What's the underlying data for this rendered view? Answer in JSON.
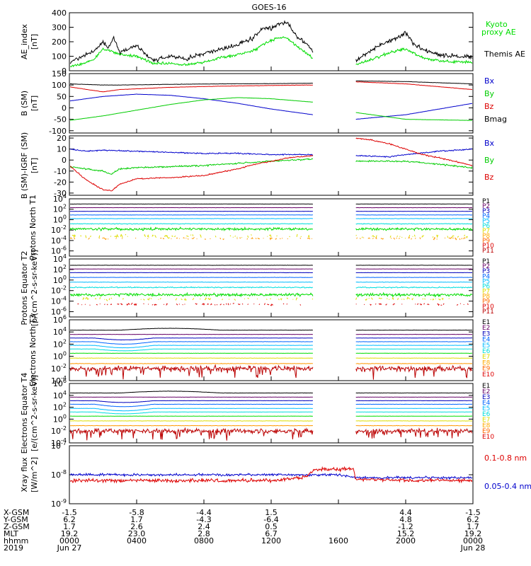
{
  "title": "GOES-16",
  "x_axis": {
    "year": "2019",
    "row_labels": [
      "X-GSM",
      "Y-GSM",
      "Z-GSM",
      "MLT",
      "hhmm"
    ],
    "ticks": [
      {
        "t": 0,
        "values": [
          "-1.5",
          "6.2",
          "1.7",
          "19.2",
          "0000"
        ],
        "date": "Jun 27"
      },
      {
        "t": 4,
        "values": [
          "-5.8",
          "1.7",
          "2.6",
          "23.0",
          "0400"
        ],
        "date": ""
      },
      {
        "t": 8,
        "values": [
          "-4.4",
          "-4.3",
          "2.4",
          "2.8",
          "0800"
        ],
        "date": ""
      },
      {
        "t": 12,
        "values": [
          "1.5",
          "-6.4",
          "0.5",
          "6.7",
          "1200"
        ],
        "date": ""
      },
      {
        "t": 16,
        "values": [
          "",
          "",
          "",
          "",
          "1600"
        ],
        "date": ""
      },
      {
        "t": 20,
        "values": [
          "4.4",
          "4.8",
          "-1.2",
          "15.2",
          "2000"
        ],
        "date": ""
      },
      {
        "t": 24,
        "values": [
          "-1.5",
          "6.2",
          "1.7",
          "19.2",
          "0000"
        ],
        "date": "Jun 28"
      }
    ],
    "range_hours": [
      0,
      24
    ]
  },
  "data_gap_hours": [
    14.5,
    17.0
  ],
  "chart_data": [
    {
      "type": "line",
      "ylabel": "AE_index [nT]",
      "ylim": [
        0,
        400
      ],
      "yticks": [
        "0",
        "100",
        "200",
        "300",
        "400"
      ],
      "legend": [
        {
          "label": "Kyoto proxy AE",
          "color": "#00dd00"
        },
        {
          "label": "Themis AE",
          "color": "#000000"
        }
      ],
      "series": [
        {
          "name": "Themis AE",
          "color": "#000000",
          "noise": 22,
          "x": [
            0,
            1,
            1.5,
            2,
            2.3,
            2.6,
            3,
            4,
            5,
            6,
            7,
            8,
            9,
            10,
            11,
            11.5,
            12,
            12.5,
            13,
            13.5,
            14,
            14.5,
            15,
            16,
            17,
            18,
            18.5,
            19,
            19.5,
            20,
            20.5,
            21,
            22,
            23,
            24
          ],
          "y": [
            60,
            110,
            140,
            200,
            150,
            230,
            130,
            170,
            70,
            100,
            80,
            120,
            150,
            180,
            230,
            300,
            290,
            320,
            330,
            240,
            200,
            130,
            60,
            40,
            70,
            140,
            180,
            200,
            230,
            260,
            180,
            150,
            110,
            100,
            90
          ]
        },
        {
          "name": "Kyoto proxy AE",
          "color": "#00dd00",
          "noise": 14,
          "x": [
            0,
            1,
            1.5,
            2,
            2.5,
            3,
            4,
            5,
            6,
            7,
            8,
            9,
            10,
            11,
            11.5,
            12,
            12.5,
            13,
            13.5,
            14,
            15,
            16,
            17,
            18,
            19,
            19.5,
            20,
            20.5,
            21,
            22,
            23,
            24
          ],
          "y": [
            30,
            55,
            80,
            150,
            140,
            110,
            100,
            50,
            50,
            40,
            60,
            90,
            110,
            140,
            180,
            210,
            230,
            220,
            170,
            130,
            40,
            30,
            40,
            80,
            120,
            140,
            150,
            120,
            90,
            70,
            60,
            60
          ]
        }
      ]
    },
    {
      "type": "line",
      "ylabel": "B (SM) [nT]",
      "ylim": [
        -110,
        150
      ],
      "yticks": [
        "-100",
        "-50",
        "0",
        "50",
        "100",
        "150"
      ],
      "legend": [
        {
          "label": "Bx",
          "color": "#0000cc"
        },
        {
          "label": "By",
          "color": "#00cc00"
        },
        {
          "label": "Bz",
          "color": "#dd0000"
        },
        {
          "label": "Bmag",
          "color": "#000000"
        }
      ],
      "series": [
        {
          "name": "Bmag",
          "color": "#000000",
          "noise": 1,
          "x": [
            0,
            2,
            3,
            6,
            9,
            12,
            14.5,
            17,
            20,
            24
          ],
          "y": [
            105,
            100,
            100,
            103,
            105,
            106,
            108,
            118,
            115,
            105
          ]
        },
        {
          "name": "Bz",
          "color": "#dd0000",
          "noise": 1,
          "x": [
            0,
            2,
            3,
            6,
            9,
            12,
            14.5,
            17,
            20,
            24
          ],
          "y": [
            92,
            70,
            80,
            90,
            95,
            98,
            100,
            114,
            105,
            80
          ]
        },
        {
          "name": "Bx",
          "color": "#0000cc",
          "noise": 0.6,
          "x": [
            0,
            2,
            4,
            6,
            8,
            10,
            12,
            14.5,
            17,
            20,
            24
          ],
          "y": [
            30,
            50,
            60,
            55,
            40,
            20,
            -5,
            -30,
            -50,
            -30,
            20
          ]
        },
        {
          "name": "By",
          "color": "#00cc00",
          "noise": 0.6,
          "x": [
            0,
            2,
            4,
            6,
            8,
            10,
            12,
            14.5,
            17,
            20,
            24
          ],
          "y": [
            -55,
            -35,
            -10,
            15,
            35,
            45,
            40,
            25,
            -20,
            -50,
            -55
          ]
        }
      ]
    },
    {
      "type": "line",
      "ylabel": "B (SM)-IGRF (SM) [nT]",
      "ylim": [
        -32,
        22
      ],
      "yticks": [
        "-30",
        "-20",
        "-10",
        "0",
        "10",
        "20"
      ],
      "legend": [
        {
          "label": "Bx",
          "color": "#0000cc"
        },
        {
          "label": "By",
          "color": "#00cc00"
        },
        {
          "label": "Bz",
          "color": "#dd0000"
        }
      ],
      "series": [
        {
          "name": "Bx",
          "color": "#0000cc",
          "noise": 0.8,
          "x": [
            0,
            1,
            2,
            4,
            6,
            8,
            10,
            12,
            14.5,
            17,
            19,
            20,
            22,
            24
          ],
          "y": [
            10,
            8,
            9,
            8,
            7,
            6,
            6,
            5,
            5,
            4,
            3,
            5,
            8,
            10
          ]
        },
        {
          "name": "By",
          "color": "#00cc00",
          "noise": 1.0,
          "x": [
            0,
            1,
            2,
            2.5,
            3,
            4,
            6,
            8,
            10,
            12,
            14.5,
            17,
            19,
            20,
            22,
            24
          ],
          "y": [
            -6,
            -8,
            -10,
            -13,
            -8,
            -7,
            -6,
            -5,
            -3,
            -1,
            1,
            -1,
            -1,
            -1,
            -4,
            -7
          ]
        },
        {
          "name": "Bz",
          "color": "#dd0000",
          "noise": 0.8,
          "x": [
            0,
            1,
            2,
            2.5,
            3,
            4,
            6,
            8,
            10,
            11,
            12,
            13,
            14.5,
            17,
            18,
            19,
            20,
            21,
            22,
            24
          ],
          "y": [
            -5,
            -18,
            -27,
            -28,
            -22,
            -17,
            -16,
            -14,
            -8,
            -4,
            -1,
            2,
            4,
            20,
            18,
            15,
            10,
            5,
            2,
            -5
          ]
        }
      ]
    },
    {
      "type": "line",
      "ylabel": "Protons North T1",
      "ylog": true,
      "ylim_exp": [
        -7,
        4
      ],
      "yticks": [
        "10^-6",
        "10^-4",
        "10^-2",
        "10^0",
        "10^2",
        "10^4"
      ],
      "legend": [
        "P1",
        "P2",
        "P3",
        "P4",
        "P5",
        "P6",
        "P7",
        "P8",
        "P9",
        "P10",
        "P11"
      ],
      "series": [
        {
          "name": "P1",
          "color": "#000000",
          "log": 3.0,
          "noise": 0.03
        },
        {
          "name": "P2",
          "color": "#660066",
          "log": 2.3,
          "noise": 0.03
        },
        {
          "name": "P3",
          "color": "#0000bb",
          "log": 1.6,
          "noise": 0.03
        },
        {
          "name": "P4",
          "color": "#0066ff",
          "log": 0.9,
          "noise": 0.04
        },
        {
          "name": "P5",
          "color": "#00bbff",
          "log": 0.2,
          "noise": 0.05
        },
        {
          "name": "P6",
          "color": "#00dddd",
          "log": -0.8,
          "noise": 0.1
        },
        {
          "name": "P7",
          "color": "#00dd00",
          "log": -1.8,
          "noise": 0.35
        },
        {
          "name": "P8",
          "color": "#dddd00",
          "log": -3.2,
          "noise": 0.5,
          "sparse": true
        },
        {
          "name": "P9",
          "color": "#ff9900",
          "log": -3.6,
          "noise": 0.3,
          "sparse": true
        }
      ]
    },
    {
      "type": "line",
      "ylabel": "Protons Equator T2 [p/(cm^2-s-sr-keV)]",
      "ylog": true,
      "ylim_exp": [
        -7,
        4
      ],
      "yticks": [
        "10^-6",
        "10^-4",
        "10^-2",
        "10^0",
        "10^2",
        "10^4"
      ],
      "legend": [
        "P1",
        "P2",
        "P3",
        "P4",
        "P5",
        "P6",
        "P7",
        "P8",
        "P9",
        "P10",
        "P11"
      ],
      "series": [
        {
          "name": "P1",
          "color": "#000000",
          "log": 2.8,
          "noise": 0.03
        },
        {
          "name": "P2",
          "color": "#660066",
          "log": 2.1,
          "noise": 0.03
        },
        {
          "name": "P3",
          "color": "#0000bb",
          "log": 1.4,
          "noise": 0.03
        },
        {
          "name": "P4",
          "color": "#0066ff",
          "log": 0.5,
          "noise": 0.04
        },
        {
          "name": "P5",
          "color": "#00bbff",
          "log": -0.4,
          "noise": 0.06
        },
        {
          "name": "P6",
          "color": "#00dddd",
          "log": -1.4,
          "noise": 0.15
        },
        {
          "name": "P7",
          "color": "#00dd00",
          "log": -2.8,
          "noise": 0.4
        },
        {
          "name": "P8",
          "color": "#dddd00",
          "log": -3.6,
          "noise": 0.4,
          "sparse": true
        },
        {
          "name": "P10",
          "color": "#dd0000",
          "log": -4.6,
          "noise": 0.3,
          "sparse": true
        }
      ]
    },
    {
      "type": "line",
      "ylabel": "Electrons North T3",
      "ylog": true,
      "ylim_exp": [
        -4,
        6
      ],
      "yticks": [
        "10^-4",
        "10^-2",
        "10^0",
        "10^2",
        "10^4",
        "10^6"
      ],
      "legend": [
        "E1",
        "E2",
        "E3",
        "E4",
        "E5",
        "E6",
        "E7",
        "E8",
        "E9",
        "E10"
      ],
      "series": [
        {
          "name": "E1",
          "color": "#000000",
          "log": 4.3,
          "noise": 0.03,
          "bump": 0.3
        },
        {
          "name": "E2",
          "color": "#660066",
          "log": 3.6,
          "noise": 0.03
        },
        {
          "name": "E3",
          "color": "#0000bb",
          "log": 3.0,
          "noise": 0.03,
          "dip": 0.3
        },
        {
          "name": "E4",
          "color": "#0066ff",
          "log": 2.4,
          "noise": 0.03,
          "dip": 0.4
        },
        {
          "name": "E5",
          "color": "#00bbff",
          "log": 1.8,
          "noise": 0.03,
          "dip": 0.4
        },
        {
          "name": "E6",
          "color": "#00dddd",
          "log": 1.2,
          "noise": 0.03,
          "dip": 0.3
        },
        {
          "name": "E7",
          "color": "#00dd00",
          "log": 0.5,
          "noise": 0.03
        },
        {
          "name": "E8",
          "color": "#dddd00",
          "log": -0.3,
          "noise": 0.04
        },
        {
          "name": "E9",
          "color": "#ff9900",
          "log": -1.2,
          "noise": 0.05
        },
        {
          "name": "E10",
          "color": "#bb0000",
          "log": -2.0,
          "noise": 0.6,
          "spiky": true
        }
      ]
    },
    {
      "type": "line",
      "ylabel": "Electrons Equator T4 [e/(cm^2-s-sr-keV)]",
      "ylog": true,
      "ylim_exp": [
        -4,
        6
      ],
      "yticks": [
        "10^-4",
        "10^-2",
        "10^0",
        "10^2",
        "10^4",
        "10^6"
      ],
      "legend": [
        "E1",
        "E2",
        "E3",
        "E4",
        "E5",
        "E6",
        "E7",
        "E8",
        "E9",
        "E10"
      ],
      "series": [
        {
          "name": "E1",
          "color": "#000000",
          "log": 4.4,
          "noise": 0.03,
          "bump": 0.3
        },
        {
          "name": "E2",
          "color": "#660066",
          "log": 3.7,
          "noise": 0.03
        },
        {
          "name": "E3",
          "color": "#0000bb",
          "log": 3.1,
          "noise": 0.03,
          "dip": 0.3
        },
        {
          "name": "E4",
          "color": "#0066ff",
          "log": 2.5,
          "noise": 0.03,
          "dip": 0.4
        },
        {
          "name": "E5",
          "color": "#00bbff",
          "log": 1.8,
          "noise": 0.03,
          "dip": 0.4
        },
        {
          "name": "E6",
          "color": "#00dddd",
          "log": 1.2,
          "noise": 0.03,
          "dip": 0.3
        },
        {
          "name": "E7",
          "color": "#00dd00",
          "log": 0.5,
          "noise": 0.03
        },
        {
          "name": "E8",
          "color": "#dddd00",
          "log": -0.3,
          "noise": 0.04
        },
        {
          "name": "E9",
          "color": "#ff9900",
          "log": -1.1,
          "noise": 0.05
        },
        {
          "name": "E10",
          "color": "#bb0000",
          "log": -2.0,
          "noise": 0.6,
          "spiky": true
        }
      ]
    },
    {
      "type": "line",
      "ylabel": "Xray flux [W/m^2]",
      "ylog": true,
      "ylim_exp": [
        -9,
        -7
      ],
      "yticks": [
        "10^-9",
        "10^-8",
        "10^-7"
      ],
      "legend": [
        {
          "label": "0.1-0.8 nm",
          "color": "#dd0000"
        },
        {
          "label": "0.05-0.4 nm",
          "color": "#0000cc"
        }
      ],
      "series": [
        {
          "name": "0.05-0.4 nm",
          "color": "#0000cc",
          "continuous": true,
          "x": [
            0,
            4,
            8,
            12,
            14,
            16,
            17,
            20,
            24
          ],
          "y": [
            -8.0,
            -8.0,
            -8.0,
            -8.0,
            -8.0,
            -8.0,
            -8.1,
            -8.1,
            -8.1
          ],
          "noise": 0.06
        },
        {
          "name": "0.1-0.8 nm",
          "color": "#dd0000",
          "continuous": true,
          "x": [
            0,
            4,
            8,
            12,
            14,
            14.5,
            15,
            16.9,
            17,
            20,
            24
          ],
          "y": [
            -8.2,
            -8.2,
            -8.2,
            -8.2,
            -8.1,
            -7.85,
            -7.82,
            -7.8,
            -8.15,
            -8.2,
            -8.2
          ],
          "noise": 0.09
        }
      ]
    }
  ]
}
